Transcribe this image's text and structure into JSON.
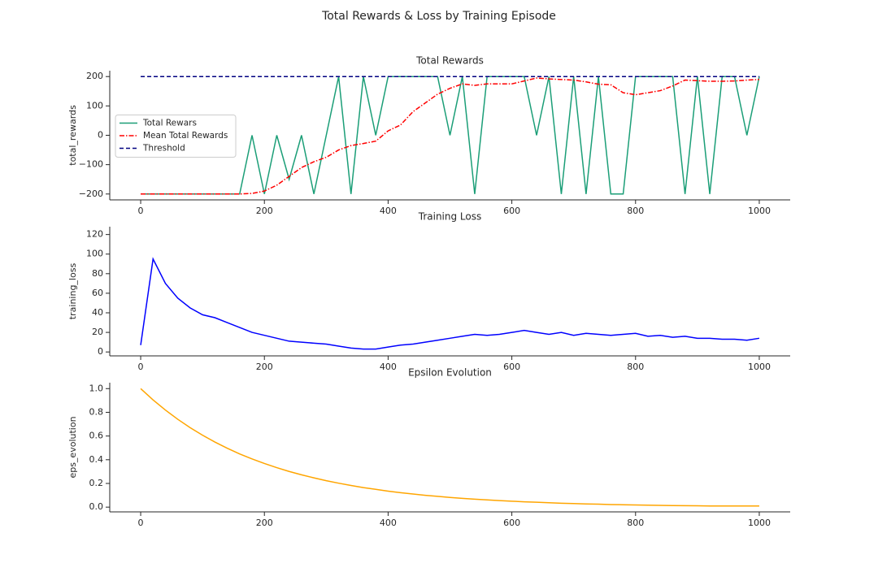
{
  "title": "Total Rewards & Loss by Training Episode",
  "chart_data": [
    {
      "type": "line",
      "title": "Total Rewards",
      "ylabel": "total_rewards",
      "x": [
        0,
        20,
        40,
        60,
        80,
        100,
        120,
        140,
        160,
        180,
        200,
        220,
        240,
        260,
        280,
        300,
        320,
        340,
        360,
        380,
        400,
        420,
        440,
        460,
        480,
        500,
        520,
        540,
        560,
        580,
        600,
        620,
        640,
        660,
        680,
        700,
        720,
        740,
        760,
        780,
        800,
        820,
        840,
        860,
        880,
        900,
        920,
        940,
        960,
        980,
        1000
      ],
      "series": [
        {
          "name": "Total Rewars",
          "color": "#1b9e77",
          "linestyle": "solid",
          "values": [
            -200,
            -200,
            -200,
            -200,
            -200,
            -200,
            -200,
            -200,
            -200,
            0,
            -200,
            0,
            -150,
            0,
            -200,
            0,
            200,
            -200,
            200,
            0,
            200,
            200,
            200,
            200,
            200,
            0,
            200,
            -200,
            200,
            200,
            200,
            200,
            0,
            200,
            -200,
            200,
            -200,
            200,
            -200,
            -200,
            200,
            200,
            200,
            200,
            -200,
            200,
            -200,
            200,
            200,
            0,
            200
          ]
        },
        {
          "name": "Mean Total Rewards",
          "color": "#ff0000",
          "linestyle": "dashdot",
          "values": [
            -200,
            -200,
            -200,
            -200,
            -200,
            -200,
            -200,
            -200,
            -200,
            -198,
            -190,
            -170,
            -140,
            -110,
            -90,
            -75,
            -50,
            -35,
            -28,
            -20,
            15,
            35,
            80,
            110,
            140,
            160,
            175,
            170,
            175,
            175,
            175,
            185,
            195,
            192,
            190,
            188,
            182,
            174,
            172,
            145,
            138,
            145,
            152,
            168,
            188,
            186,
            184,
            184,
            185,
            188,
            190
          ]
        },
        {
          "name": "Threshold",
          "color": "#000080",
          "linestyle": "dashed",
          "values": [
            200,
            200,
            200,
            200,
            200,
            200,
            200,
            200,
            200,
            200,
            200,
            200,
            200,
            200,
            200,
            200,
            200,
            200,
            200,
            200,
            200,
            200,
            200,
            200,
            200,
            200,
            200,
            200,
            200,
            200,
            200,
            200,
            200,
            200,
            200,
            200,
            200,
            200,
            200,
            200,
            200,
            200,
            200,
            200,
            200,
            200,
            200,
            200,
            200,
            200,
            200
          ]
        }
      ],
      "xlim": [
        -50,
        1050
      ],
      "xticks": [
        0,
        200,
        400,
        600,
        800,
        1000
      ],
      "ylim": [
        -220,
        220
      ],
      "yticks": [
        {
          "value": -200,
          "label": "−200"
        },
        {
          "value": -100,
          "label": "−100"
        },
        0,
        100,
        200
      ],
      "legend": "center left"
    },
    {
      "type": "line",
      "title": "Training Loss",
      "ylabel": "training_loss",
      "x": [
        0,
        20,
        40,
        60,
        80,
        100,
        120,
        140,
        160,
        180,
        200,
        220,
        240,
        260,
        280,
        300,
        320,
        340,
        360,
        380,
        400,
        420,
        440,
        460,
        480,
        500,
        520,
        540,
        560,
        580,
        600,
        620,
        640,
        660,
        680,
        700,
        720,
        740,
        760,
        780,
        800,
        820,
        840,
        860,
        880,
        900,
        920,
        940,
        960,
        980,
        1000
      ],
      "series": [
        {
          "name": "training_loss",
          "color": "#0000ff",
          "linestyle": "solid",
          "values": [
            7,
            95,
            70,
            55,
            45,
            38,
            35,
            30,
            25,
            20,
            17,
            14,
            11,
            10,
            9,
            8,
            6,
            4,
            3,
            3,
            5,
            7,
            8,
            10,
            12,
            14,
            16,
            18,
            17,
            18,
            20,
            22,
            20,
            18,
            20,
            17,
            19,
            18,
            17,
            18,
            19,
            16,
            17,
            15,
            16,
            14,
            14,
            13,
            13,
            12,
            14
          ]
        }
      ],
      "xlim": [
        -50,
        1050
      ],
      "xticks": [
        0,
        200,
        400,
        600,
        800,
        1000
      ],
      "ylim": [
        -4,
        128
      ],
      "yticks": [
        0,
        20,
        40,
        60,
        80,
        100,
        120
      ]
    },
    {
      "type": "line",
      "title": "Epsilon Evolution",
      "ylabel": "eps_evolution",
      "x": [
        0,
        20,
        40,
        60,
        80,
        100,
        120,
        140,
        160,
        180,
        200,
        220,
        240,
        260,
        280,
        300,
        320,
        340,
        360,
        380,
        400,
        420,
        440,
        460,
        480,
        500,
        520,
        540,
        560,
        580,
        600,
        620,
        640,
        660,
        680,
        700,
        720,
        740,
        760,
        780,
        800,
        820,
        840,
        860,
        880,
        900,
        920,
        940,
        960,
        980,
        1000
      ],
      "series": [
        {
          "name": "eps_evolution",
          "color": "#ffa500",
          "linestyle": "solid",
          "values": [
            1.0,
            0.905,
            0.819,
            0.741,
            0.67,
            0.607,
            0.549,
            0.497,
            0.449,
            0.407,
            0.368,
            0.333,
            0.301,
            0.273,
            0.247,
            0.223,
            0.202,
            0.183,
            0.165,
            0.15,
            0.135,
            0.122,
            0.111,
            0.1,
            0.091,
            0.082,
            0.074,
            0.067,
            0.061,
            0.055,
            0.05,
            0.045,
            0.041,
            0.037,
            0.033,
            0.03,
            0.027,
            0.025,
            0.022,
            0.02,
            0.018,
            0.017,
            0.015,
            0.013,
            0.012,
            0.011,
            0.01,
            0.01,
            0.01,
            0.01,
            0.01
          ]
        }
      ],
      "xlim": [
        -50,
        1050
      ],
      "xticks": [
        0,
        200,
        400,
        600,
        800,
        1000
      ],
      "ylim": [
        -0.04,
        1.05
      ],
      "yticks": [
        {
          "value": 0,
          "label": "0.0"
        },
        0.2,
        0.4,
        0.6,
        0.8,
        {
          "value": 1,
          "label": "1.0"
        }
      ]
    }
  ]
}
